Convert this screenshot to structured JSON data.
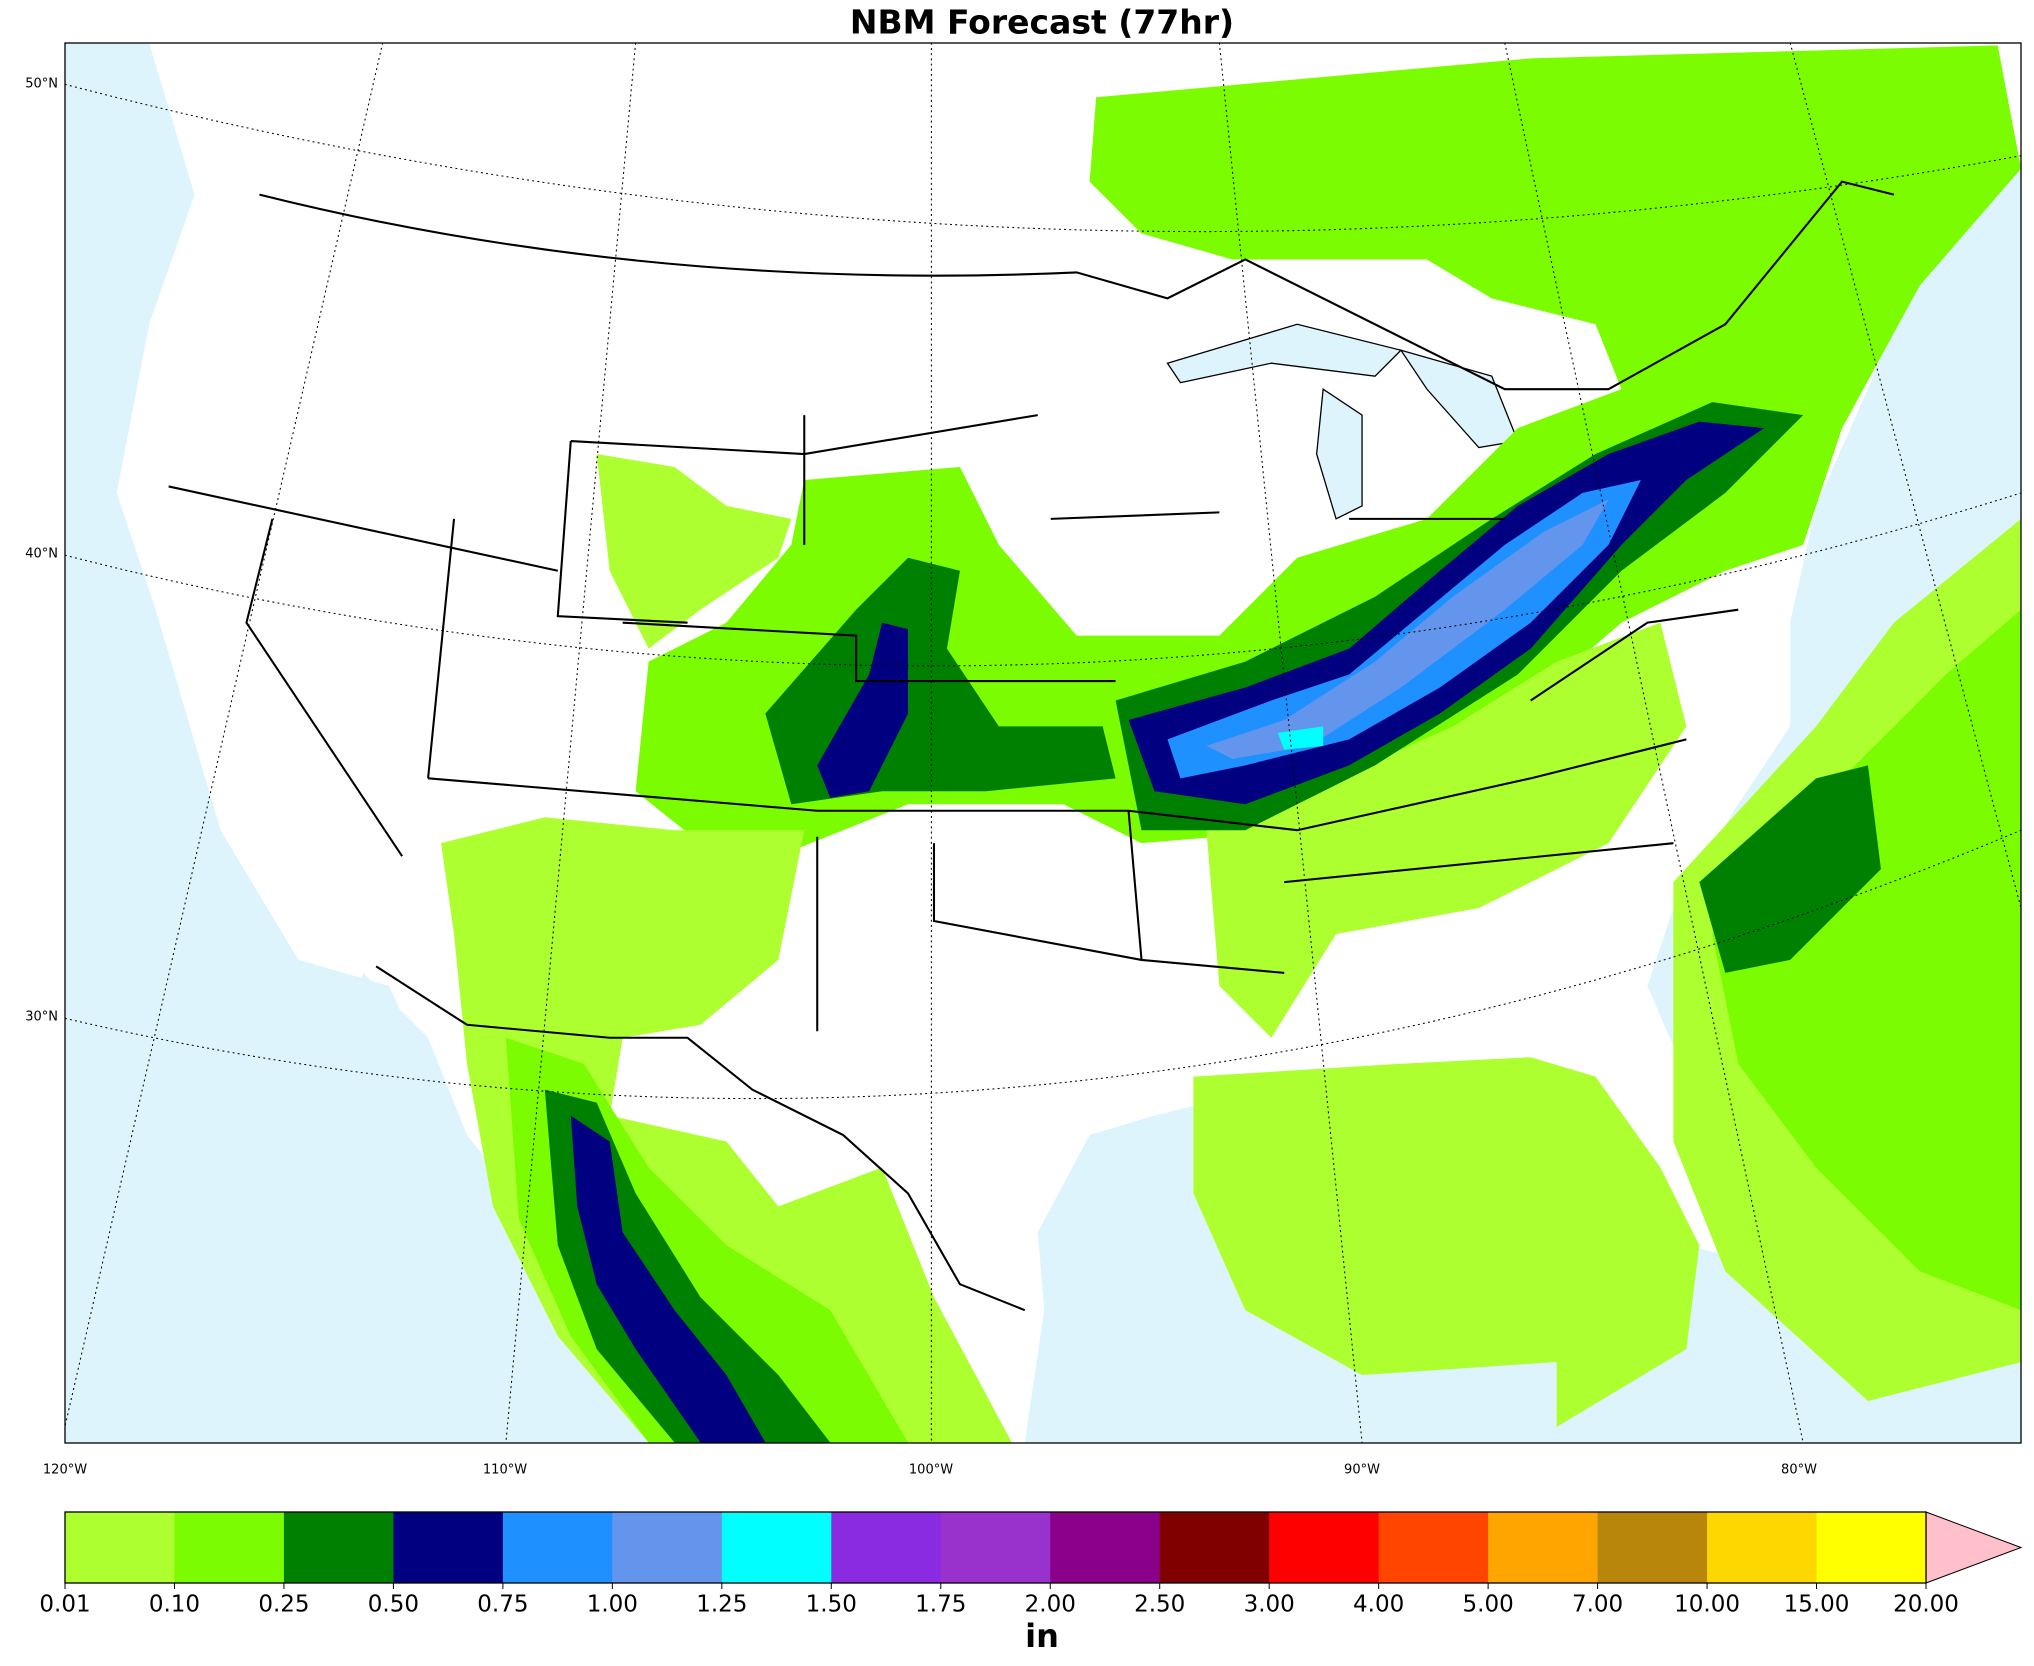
{
  "map": {
    "title": "NBM Forecast (77hr)",
    "latitude_labels": [
      "50°N",
      "40°N",
      "30°N"
    ],
    "longitude_labels": [
      "120°W",
      "110°W",
      "100°W",
      "90°W",
      "80°W"
    ]
  },
  "colorbar": {
    "unit": "in",
    "levels": [
      {
        "value": 0.01,
        "label": "0.01"
      },
      {
        "value": 0.1,
        "label": "0.10"
      },
      {
        "value": 0.25,
        "label": "0.25"
      },
      {
        "value": 0.5,
        "label": "0.50"
      },
      {
        "value": 0.75,
        "label": "0.75"
      },
      {
        "value": 1,
        "label": "1.00"
      },
      {
        "value": 1.25,
        "label": "1.25"
      },
      {
        "value": 1.5,
        "label": "1.50"
      },
      {
        "value": 1.75,
        "label": "1.75"
      },
      {
        "value": 2,
        "label": "2.00"
      },
      {
        "value": 2.5,
        "label": "2.50"
      },
      {
        "value": 3,
        "label": "3.00"
      },
      {
        "value": 4,
        "label": "4.00"
      },
      {
        "value": 5,
        "label": "5.00"
      },
      {
        "value": 7,
        "label": "7.00"
      },
      {
        "value": 10,
        "label": "10.00"
      },
      {
        "value": 15,
        "label": "15.00"
      },
      {
        "value": 20,
        "label": "20.00"
      }
    ],
    "colors": [
      "#adff2f",
      "#7cfc00",
      "#008000",
      "#000080",
      "#1e90ff",
      "#6495ed",
      "#00ffff",
      "#8a2be2",
      "#9932cc",
      "#8b008b",
      "#800000",
      "#ff0000",
      "#ff4500",
      "#ffa500",
      "#b8860b",
      "#ffd700",
      "#ffff00"
    ],
    "over_color": "#ffc0cb"
  }
}
